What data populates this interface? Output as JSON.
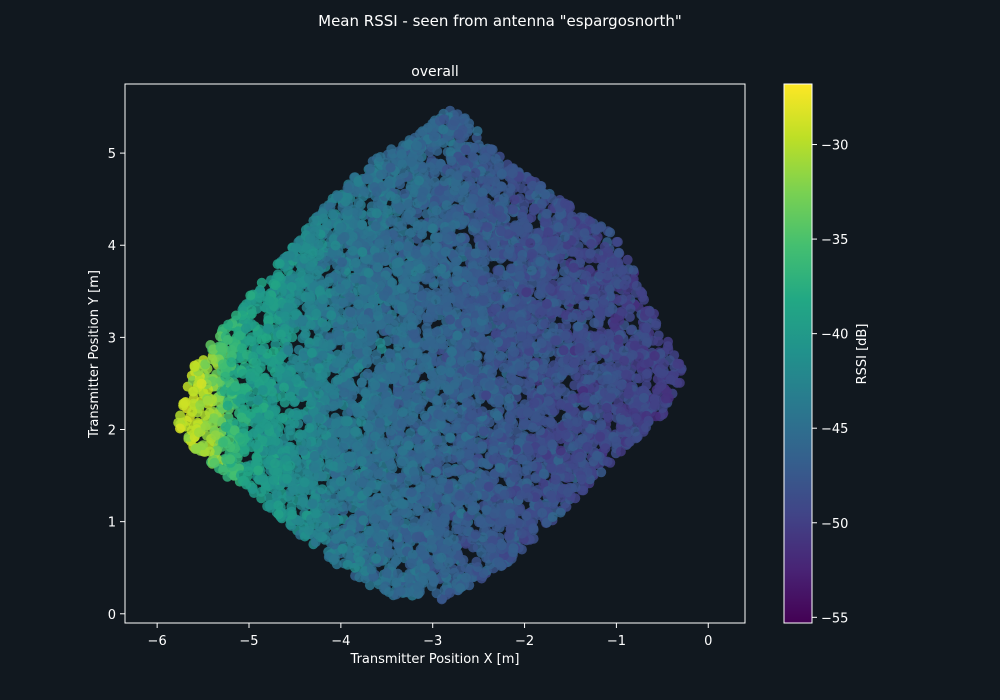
{
  "chart_data": {
    "type": "scatter",
    "title": "Mean RSSI - seen from antenna \"espargosnorth\"",
    "subtitle": "overall",
    "xlabel": "Transmitter Position X [m]",
    "ylabel": "Transmitter Position Y [m]",
    "xlim": [
      -6.35,
      0.4
    ],
    "ylim": [
      -0.1,
      5.75
    ],
    "xticks": [
      -6,
      -5,
      -4,
      -3,
      -2,
      -1,
      0
    ],
    "yticks": [
      0,
      1,
      2,
      3,
      4,
      5
    ],
    "xtick_labels": [
      "−6",
      "−5",
      "−4",
      "−3",
      "−2",
      "−1",
      "0"
    ],
    "ytick_labels": [
      "0",
      "1",
      "2",
      "3",
      "4",
      "5"
    ],
    "grid": false,
    "colorbar": {
      "label": "RSSI [dB]",
      "colormap": "viridis",
      "range": [
        -55.3,
        -26.8
      ],
      "ticks": [
        -30,
        -35,
        -40,
        -45,
        -50,
        -55
      ],
      "tick_labels": [
        "−30",
        "−35",
        "−40",
        "−45",
        "−50",
        "−55"
      ]
    },
    "region_vertices": [
      [
        -2.8,
        5.52
      ],
      [
        -2.55,
        5.3
      ],
      [
        -2.2,
        4.9
      ],
      [
        -1.6,
        4.5
      ],
      [
        -1.0,
        4.1
      ],
      [
        -0.75,
        3.6
      ],
      [
        -0.5,
        3.1
      ],
      [
        -0.25,
        2.6
      ],
      [
        -0.45,
        2.2
      ],
      [
        -0.9,
        1.8
      ],
      [
        -1.3,
        1.4
      ],
      [
        -1.8,
        0.9
      ],
      [
        -2.3,
        0.45
      ],
      [
        -2.9,
        0.15
      ],
      [
        -3.5,
        0.2
      ],
      [
        -4.0,
        0.5
      ],
      [
        -4.5,
        0.9
      ],
      [
        -5.0,
        1.3
      ],
      [
        -5.4,
        1.6
      ],
      [
        -5.8,
        2.0
      ],
      [
        -5.6,
        2.7
      ],
      [
        -5.2,
        3.2
      ],
      [
        -4.7,
        3.8
      ],
      [
        -4.2,
        4.4
      ],
      [
        -3.7,
        4.9
      ],
      [
        -3.2,
        5.2
      ]
    ],
    "rssi_profile": [
      {
        "x": -5.6,
        "rssi": -32
      },
      {
        "x": -5.0,
        "rssi": -39
      },
      {
        "x": -4.0,
        "rssi": -44
      },
      {
        "x": -3.0,
        "rssi": -46
      },
      {
        "x": -2.0,
        "rssi": -48
      },
      {
        "x": -1.0,
        "rssi": -49
      },
      {
        "x": -0.3,
        "rssi": -50
      }
    ]
  },
  "colors": {
    "background": "#11181f",
    "axes": "#ffffff",
    "text": "#ffffff"
  }
}
